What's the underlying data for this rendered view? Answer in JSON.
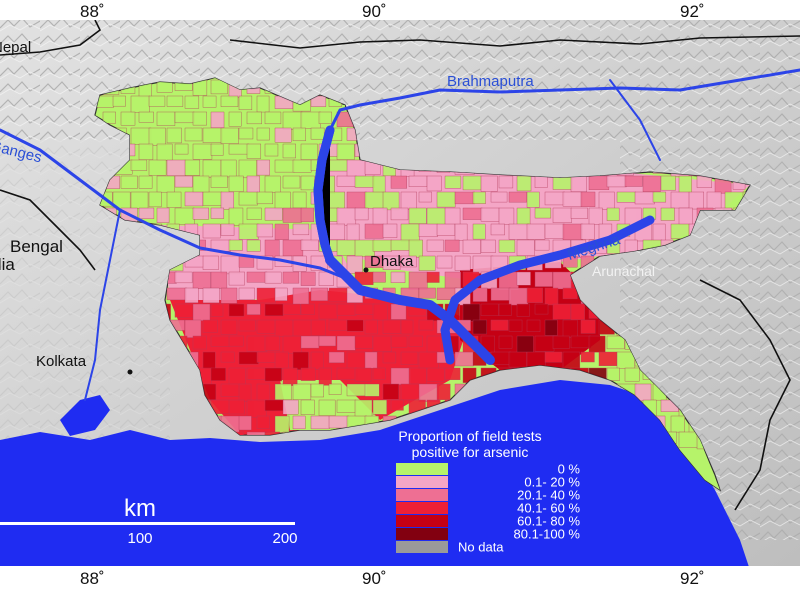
{
  "map": {
    "graticule": {
      "top_labels": [
        "88˚",
        "90˚",
        "92˚"
      ],
      "bottom_labels": [
        "88˚",
        "90˚",
        "92˚"
      ]
    },
    "places": {
      "nepal": "Nepal",
      "bengal": "Bengal",
      "india": "India",
      "kolkata": "Kolkata",
      "dhaka": "Dhaka",
      "arunachal": "Arunachal"
    },
    "rivers": {
      "brahmaputra": "Brahmaputra",
      "ganges": "Ganges",
      "meghna": "Meghna"
    }
  },
  "legend": {
    "title_line1": "Proportion of field tests",
    "title_line2": "positive for arsenic",
    "items": [
      {
        "label": "0 %",
        "color": "#b6f36a"
      },
      {
        "label": "0.1-  20 %",
        "color": "#f4a6c6"
      },
      {
        "label": "20.1-  40 %",
        "color": "#ee6f93"
      },
      {
        "label": "40.1-  60 %",
        "color": "#ee2036"
      },
      {
        "label": "60.1-  80 %",
        "color": "#c50014"
      },
      {
        "label": "80.1-100 %",
        "color": "#820010"
      },
      {
        "label": "No data",
        "color": "#9a9a9a"
      }
    ]
  },
  "scale_bar": {
    "unit": "km",
    "labels": [
      "100",
      "200"
    ]
  },
  "colors": {
    "sea": "#1f2cf2",
    "river": "#2c44e8",
    "land": "#d9d9d9"
  }
}
